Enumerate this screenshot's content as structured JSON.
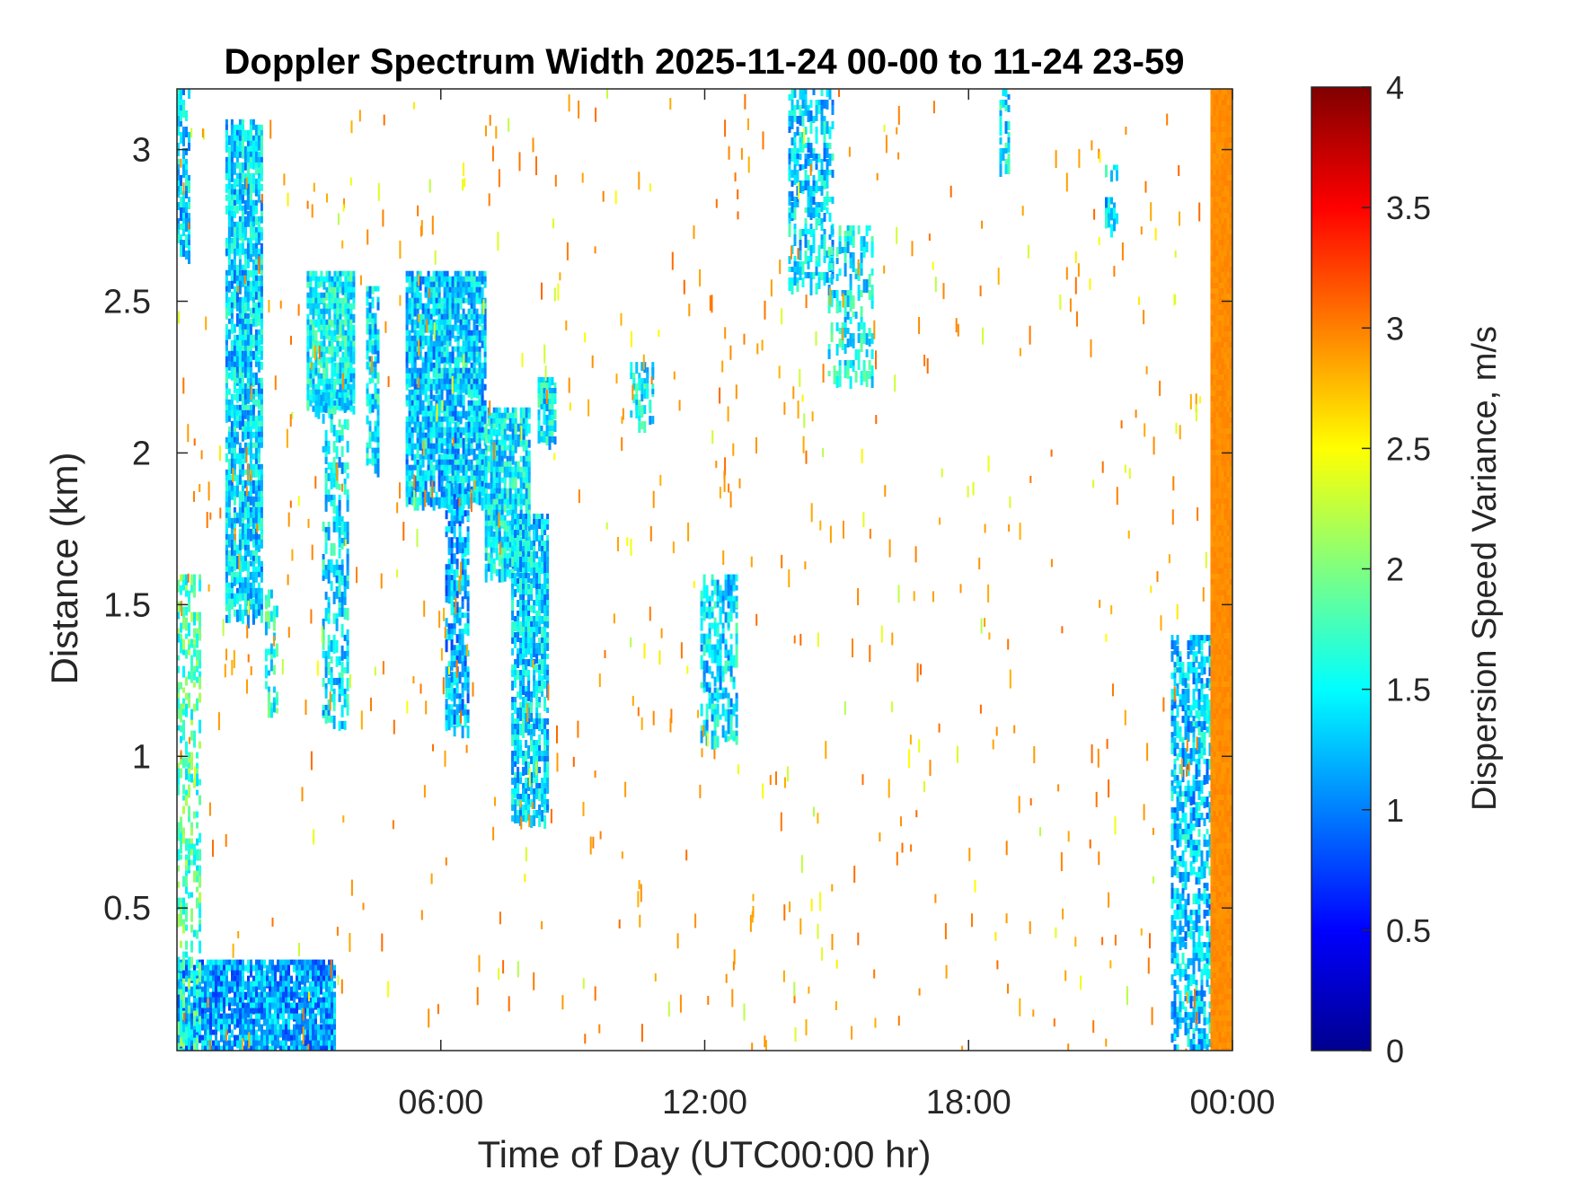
{
  "chart_data": {
    "type": "heatmap",
    "title": "Doppler Spectrum Width 2025-11-24 00-00 to 11-24 23-59",
    "xlabel": "Time of Day (UTC00:00 hr)",
    "ylabel": "Distance (km)",
    "xlim_hours": [
      0,
      24
    ],
    "ylim_km": [
      0.03,
      3.2
    ],
    "x_ticks": [
      {
        "value": 6,
        "label": "06:00"
      },
      {
        "value": 12,
        "label": "12:00"
      },
      {
        "value": 18,
        "label": "18:00"
      },
      {
        "value": 24,
        "label": "00:00"
      }
    ],
    "y_ticks": [
      {
        "value": 0.5,
        "label": "0.5"
      },
      {
        "value": 1,
        "label": "1"
      },
      {
        "value": 1.5,
        "label": "1.5"
      },
      {
        "value": 2,
        "label": "2"
      },
      {
        "value": 2.5,
        "label": "2.5"
      },
      {
        "value": 3,
        "label": "3"
      }
    ],
    "colorbar": {
      "label": "Dispersion Speed Variance, m/s",
      "colormap": "jet",
      "range": [
        0,
        4
      ],
      "ticks": [
        {
          "value": 0,
          "label": "0"
        },
        {
          "value": 0.5,
          "label": "0.5"
        },
        {
          "value": 1,
          "label": "1"
        },
        {
          "value": 1.5,
          "label": "1.5"
        },
        {
          "value": 2,
          "label": "2"
        },
        {
          "value": 2.5,
          "label": "2.5"
        },
        {
          "value": 3,
          "label": "3"
        },
        {
          "value": 3.5,
          "label": "3.5"
        },
        {
          "value": 4,
          "label": "4"
        }
      ]
    },
    "regions": [
      {
        "t0": 0.0,
        "t1": 0.3,
        "h0": 2.65,
        "h1": 3.2,
        "v": 1.35,
        "density": 0.6
      },
      {
        "t0": 1.1,
        "t1": 1.9,
        "h0": 1.45,
        "h1": 3.1,
        "v": 1.35,
        "density": 0.7
      },
      {
        "t0": 2.0,
        "t1": 2.25,
        "h0": 1.15,
        "h1": 1.55,
        "v": 1.6,
        "density": 0.35
      },
      {
        "t0": 2.95,
        "t1": 4.0,
        "h0": 2.15,
        "h1": 2.6,
        "v": 1.5,
        "density": 0.8
      },
      {
        "t0": 3.3,
        "t1": 3.9,
        "h0": 1.1,
        "h1": 2.2,
        "v": 1.4,
        "density": 0.35
      },
      {
        "t0": 4.3,
        "t1": 4.55,
        "h0": 1.95,
        "h1": 2.55,
        "v": 1.4,
        "density": 0.6
      },
      {
        "t0": 5.2,
        "t1": 7.0,
        "h0": 1.85,
        "h1": 2.6,
        "v": 1.3,
        "density": 0.8
      },
      {
        "t0": 6.1,
        "t1": 6.6,
        "h0": 1.1,
        "h1": 1.9,
        "v": 1.2,
        "density": 0.55
      },
      {
        "t0": 7.0,
        "t1": 8.0,
        "h0": 1.6,
        "h1": 2.15,
        "v": 1.45,
        "density": 0.75
      },
      {
        "t0": 7.6,
        "t1": 8.45,
        "h0": 0.8,
        "h1": 1.8,
        "v": 1.35,
        "density": 0.65
      },
      {
        "t0": 8.2,
        "t1": 8.6,
        "h0": 2.05,
        "h1": 2.25,
        "v": 1.45,
        "density": 0.75
      },
      {
        "t0": 10.3,
        "t1": 10.8,
        "h0": 2.1,
        "h1": 2.3,
        "v": 1.5,
        "density": 0.4
      },
      {
        "t0": 11.9,
        "t1": 12.7,
        "h0": 1.05,
        "h1": 1.6,
        "v": 1.4,
        "density": 0.5
      },
      {
        "t0": 13.9,
        "t1": 14.9,
        "h0": 2.55,
        "h1": 3.2,
        "v": 1.35,
        "density": 0.45
      },
      {
        "t0": 14.8,
        "t1": 15.8,
        "h0": 2.25,
        "h1": 2.75,
        "v": 1.5,
        "density": 0.3
      },
      {
        "t0": 18.7,
        "t1": 18.9,
        "h0": 2.95,
        "h1": 3.2,
        "v": 1.45,
        "density": 0.5
      },
      {
        "t0": 21.1,
        "t1": 21.35,
        "h0": 2.75,
        "h1": 2.95,
        "v": 1.4,
        "density": 0.4
      },
      {
        "t0": 22.6,
        "t1": 23.5,
        "h0": 0.05,
        "h1": 1.4,
        "v": 1.3,
        "density": 0.5
      },
      {
        "t0": 0.0,
        "t1": 3.6,
        "h0": 0.03,
        "h1": 0.33,
        "v": 1.15,
        "density": 0.85
      },
      {
        "t0": 0.0,
        "t1": 0.5,
        "h0": 0.03,
        "h1": 1.6,
        "v": 1.8,
        "density": 0.35
      },
      {
        "t0": 23.5,
        "t1": 24.0,
        "h0": 0.03,
        "h1": 3.2,
        "v": 2.95,
        "density": 1.0
      }
    ],
    "sparse_noise": {
      "value": 2.95,
      "note": "scattered isolated high-variance pixels across the domain"
    }
  }
}
